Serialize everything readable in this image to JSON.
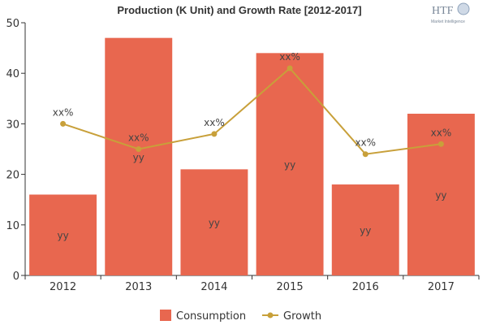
{
  "chart_data": {
    "type": "bar",
    "title": "Production (K Unit) and Growth Rate [2012-2017]",
    "categories": [
      "2012",
      "2013",
      "2014",
      "2015",
      "2016",
      "2017"
    ],
    "series": [
      {
        "name": "Consumption",
        "type": "bar",
        "color": "#e8674f",
        "values": [
          16,
          47,
          21,
          44,
          18,
          32
        ],
        "labels": [
          "yy",
          "yy",
          "yy",
          "yy",
          "yy",
          "yy"
        ]
      },
      {
        "name": "Growth",
        "type": "line",
        "color": "#c8a03a",
        "values": [
          30,
          25,
          28,
          41,
          24,
          26
        ],
        "labels": [
          "xx%",
          "xx%",
          "xx%",
          "xx%",
          "xx%",
          "xx%"
        ]
      }
    ],
    "yticks": [
      "0",
      "10",
      "20",
      "30",
      "40",
      "50"
    ],
    "ylim": [
      0,
      50
    ],
    "xlabel": "",
    "ylabel": "",
    "grid": false,
    "legend": "bottom-center"
  },
  "logo": {
    "text": "HTF",
    "subtext": "Market Intelligence"
  }
}
